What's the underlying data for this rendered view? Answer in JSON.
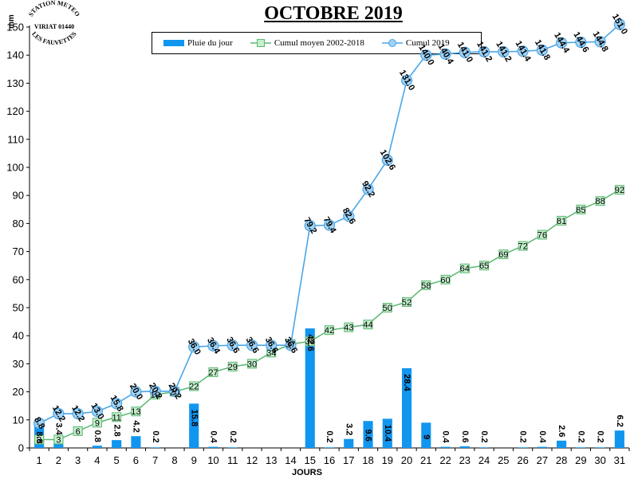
{
  "title": "OCTOBRE 2019",
  "unit_label": "mm",
  "xlabel": "JOURS",
  "station_stamp": [
    "STATION METEO",
    "VIRIAT 01440",
    "LES FAUVETTES"
  ],
  "legend": {
    "rain": "Pluie du jour",
    "avg": "Cumul moyen 2002-2018",
    "cum": "Cumul 2019"
  },
  "colors": {
    "rain": "#1196f0",
    "avg_line": "#5ab870",
    "avg_fill": "#c6efce",
    "cum_line": "#4aa6e8",
    "cum_fill": "#9fd2f5"
  },
  "chart_data": {
    "type": "bar",
    "title": "OCTOBRE 2019",
    "xlabel": "JOURS",
    "ylabel": "mm",
    "ylim": [
      0,
      150
    ],
    "yticks": [
      0,
      10,
      20,
      30,
      40,
      50,
      60,
      70,
      80,
      90,
      100,
      110,
      120,
      130,
      140,
      150
    ],
    "grid": false,
    "legend_position": "top-center",
    "categories": [
      "1",
      "2",
      "3",
      "4",
      "5",
      "6",
      "7",
      "8",
      "9",
      "10",
      "11",
      "12",
      "13",
      "14",
      "15",
      "16",
      "17",
      "18",
      "19",
      "20",
      "21",
      "22",
      "23",
      "24",
      "25",
      "26",
      "27",
      "28",
      "29",
      "30",
      "31"
    ],
    "series": [
      {
        "name": "Pluie du jour",
        "type": "bar",
        "values": [
          8.8,
          3.4,
          0,
          0.8,
          2.8,
          4.2,
          0.2,
          0,
          15.8,
          0.4,
          0.2,
          0,
          0,
          0,
          42.6,
          0.2,
          3.2,
          9.6,
          10.4,
          28.4,
          9,
          0.4,
          0.6,
          0.2,
          0,
          0.2,
          0.4,
          2.6,
          0.2,
          0.2,
          6.2
        ],
        "labels": [
          "8.8",
          "3.4",
          "",
          "0.8",
          "2.8",
          "4.2",
          "0.2",
          "",
          "15.8",
          "0.4",
          "0.2",
          "",
          "",
          "",
          "42.6",
          "0.2",
          "3.2",
          "9.6",
          "10.4",
          "28.4",
          "9",
          "0.4",
          "0.6",
          "0.2",
          "",
          "0.2",
          "0.4",
          "2.6",
          "0.2",
          "0.2",
          "6.2"
        ]
      },
      {
        "name": "Cumul moyen 2002-2018",
        "type": "line",
        "values": [
          3,
          3,
          6,
          9,
          11,
          13,
          19,
          20,
          22,
          27,
          29,
          30,
          34,
          37,
          38,
          42,
          43,
          44,
          50,
          52,
          58,
          60,
          64,
          65,
          69,
          72,
          76,
          81,
          85,
          88,
          92
        ],
        "labels": [
          "3",
          "3",
          "6",
          "9",
          "11",
          "13",
          "19",
          "20",
          "22",
          "27",
          "29",
          "30",
          "34",
          "37",
          "38",
          "42",
          "43",
          "44",
          "50",
          "52",
          "58",
          "60",
          "64",
          "65",
          "69",
          "72",
          "76",
          "81",
          "85",
          "88",
          "92"
        ]
      },
      {
        "name": "Cumul 2019",
        "type": "line",
        "values": [
          8.8,
          12.2,
          12.2,
          13.0,
          15.8,
          20.0,
          20.2,
          20.2,
          36.0,
          36.4,
          36.6,
          36.6,
          36.6,
          36.6,
          79.2,
          79.4,
          82.6,
          92.2,
          102.6,
          131.0,
          140.0,
          140.4,
          141.0,
          141.2,
          141.2,
          141.4,
          141.8,
          144.4,
          144.6,
          144.8,
          151.0
        ],
        "labels": [
          "8.8",
          "12.2",
          "12.2",
          "13.0",
          "15.8",
          "20.0",
          "20.2",
          "20.2",
          "36.0",
          "36.4",
          "36.6",
          "36.6",
          "36.6",
          "36.6",
          "79.2",
          "79.4",
          "82.6",
          "92.2",
          "102.6",
          "131.0",
          "140.0",
          "140.4",
          "141.0",
          "141.2",
          "141.2",
          "141.4",
          "141.8",
          "144.4",
          "144.6",
          "144.8",
          "151.0"
        ]
      }
    ]
  }
}
